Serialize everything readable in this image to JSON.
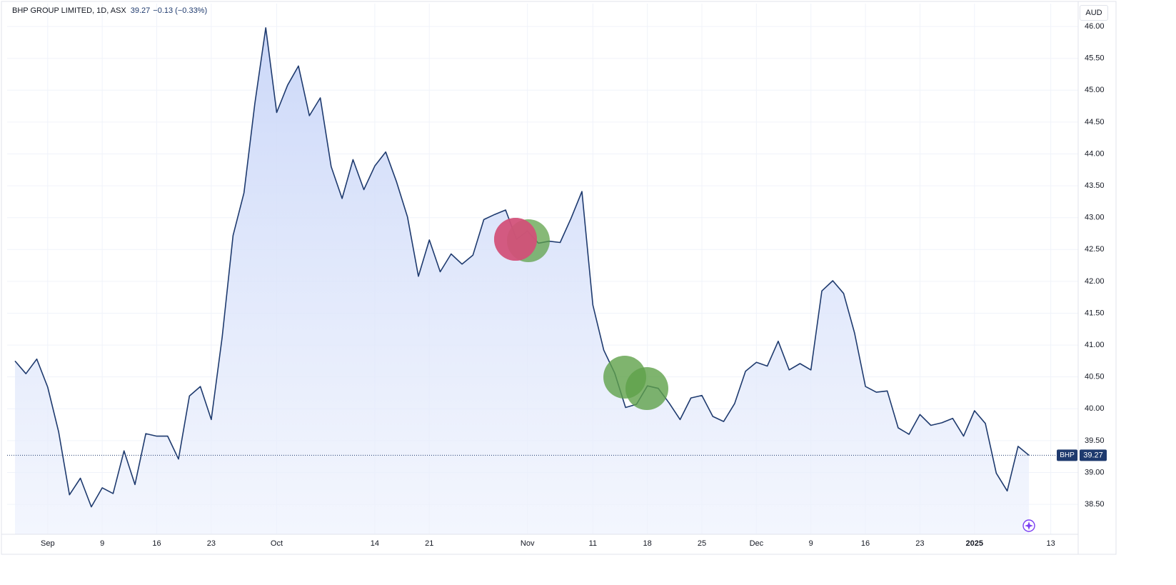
{
  "chart_data": {
    "type": "area",
    "title": "BHP GROUP LIMITED, 1D, ASX",
    "change": "−0.13 (−0.33%)",
    "currency": "AUD",
    "categories": [
      null,
      null,
      null,
      "Sep",
      null,
      null,
      null,
      null,
      "9",
      null,
      null,
      null,
      null,
      "16",
      null,
      null,
      null,
      null,
      "23",
      null,
      null,
      null,
      null,
      null,
      "Oct",
      null,
      null,
      null,
      null,
      null,
      null,
      null,
      null,
      "14",
      null,
      null,
      null,
      null,
      "21",
      null,
      null,
      null,
      null,
      null,
      null,
      null,
      null,
      "Nov",
      null,
      null,
      null,
      null,
      null,
      "11",
      null,
      null,
      null,
      null,
      "18",
      null,
      null,
      null,
      null,
      "25",
      null,
      null,
      null,
      null,
      "Dec",
      null,
      null,
      null,
      null,
      "9",
      null,
      null,
      null,
      null,
      "16",
      null,
      null,
      null,
      null,
      "23",
      null,
      null,
      null,
      null,
      "2025",
      null,
      null,
      null,
      null,
      null,
      null,
      "13"
    ],
    "series": [
      {
        "name": "BHP",
        "color": "#1e3a6e",
        "values": [
          40.75,
          40.55,
          40.78,
          40.34,
          39.64,
          38.65,
          38.91,
          38.46,
          38.76,
          38.67,
          39.34,
          38.81,
          39.61,
          39.57,
          39.57,
          39.21,
          40.2,
          40.35,
          39.83,
          41.12,
          42.72,
          43.39,
          44.79,
          45.98,
          44.65,
          45.08,
          45.38,
          44.6,
          44.88,
          43.8,
          43.3,
          43.91,
          43.44,
          43.81,
          44.03,
          43.56,
          43.01,
          42.08,
          42.65,
          42.15,
          42.43,
          42.27,
          42.41,
          42.97,
          43.05,
          43.12,
          42.66,
          42.79,
          42.6,
          42.63,
          42.61,
          42.99,
          43.41,
          41.63,
          40.92,
          40.56,
          40.02,
          40.07,
          40.36,
          40.32,
          40.09,
          39.83,
          40.17,
          40.21,
          39.88,
          39.8,
          40.08,
          40.59,
          40.73,
          40.67,
          41.06,
          40.61,
          40.71,
          40.61,
          41.85,
          42.01,
          41.81,
          41.19,
          40.35,
          40.26,
          40.28,
          39.7,
          39.6,
          39.91,
          39.74,
          39.78,
          39.85,
          39.57,
          39.97,
          39.77,
          38.99,
          38.71,
          39.41,
          39.27,
          null,
          null
        ]
      }
    ],
    "ylim": [
      38.03,
      46.36
    ],
    "yticks": [
      {
        "value": 38.5,
        "label": "38.50"
      },
      {
        "value": 39,
        "label": "39.00"
      },
      {
        "value": 39.5,
        "label": "39.50"
      },
      {
        "value": 40,
        "label": "40.00"
      },
      {
        "value": 40.5,
        "label": "40.50"
      },
      {
        "value": 41,
        "label": "41.00"
      },
      {
        "value": 41.5,
        "label": "41.50"
      },
      {
        "value": 42,
        "label": "42.00"
      },
      {
        "value": 42.5,
        "label": "42.50"
      },
      {
        "value": 43,
        "label": "43.00"
      },
      {
        "value": 43.5,
        "label": "43.50"
      },
      {
        "value": 44,
        "label": "44.00"
      },
      {
        "value": 44.5,
        "label": "44.50"
      },
      {
        "value": 45,
        "label": "45.00"
      },
      {
        "value": 45.5,
        "label": "45.50"
      },
      {
        "value": 46,
        "label": "46.00"
      }
    ],
    "grid": true
  }
}
